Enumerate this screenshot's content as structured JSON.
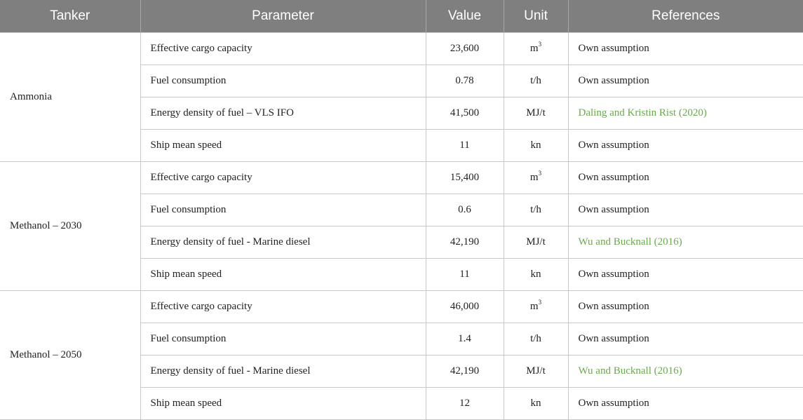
{
  "headers": {
    "tanker": "Tanker",
    "parameter": "Parameter",
    "value": "Value",
    "unit": "Unit",
    "references": "References"
  },
  "groups": [
    {
      "tanker": "Ammonia",
      "rows": [
        {
          "parameter": "Effective cargo capacity",
          "value": "23,600",
          "unit": "m",
          "unit_sup": "3",
          "reference": "Own assumption"
        },
        {
          "parameter": "Fuel consumption",
          "value": "0.78",
          "unit": "t/h",
          "reference": "Own assumption"
        },
        {
          "parameter": "Energy density of fuel – VLS IFO",
          "value": "41,500",
          "unit": "MJ/t",
          "reference": "Daling and Kristin Rist (2020)",
          "reference_link": true
        },
        {
          "parameter": "Ship mean speed",
          "value": "11",
          "unit": "kn",
          "reference": "Own assumption"
        }
      ]
    },
    {
      "tanker": "Methanol – 2030",
      "rows": [
        {
          "parameter": "Effective cargo capacity",
          "value": "15,400",
          "unit": "m",
          "unit_sup": "3",
          "reference": "Own assumption"
        },
        {
          "parameter": "Fuel consumption",
          "value": "0.6",
          "unit": "t/h",
          "reference": "Own assumption"
        },
        {
          "parameter": "Energy density of fuel - Marine diesel",
          "value": "42,190",
          "unit": "MJ/t",
          "reference": "Wu and Bucknall (2016)",
          "reference_link": true
        },
        {
          "parameter": "Ship mean speed",
          "value": "11",
          "unit": "kn",
          "reference": "Own assumption"
        }
      ]
    },
    {
      "tanker": "Methanol – 2050",
      "rows": [
        {
          "parameter": "Effective cargo capacity",
          "value": "46,000",
          "unit": "m",
          "unit_sup": "3",
          "reference": "Own assumption"
        },
        {
          "parameter": "Fuel consumption",
          "value": "1.4",
          "unit": "t/h",
          "reference": "Own assumption"
        },
        {
          "parameter": "Energy density of fuel - Marine diesel",
          "value": "42,190",
          "unit": "MJ/t",
          "reference": "Wu and Bucknall (2016)",
          "reference_link": true
        },
        {
          "parameter": "Ship mean speed",
          "value": "12",
          "unit": "kn",
          "reference": "Own assumption"
        }
      ]
    }
  ],
  "colors": {
    "header_bg": "#7f7f7f",
    "header_text": "#ffffff",
    "link": "#6aa84f",
    "grid": "#c8c8c8"
  }
}
